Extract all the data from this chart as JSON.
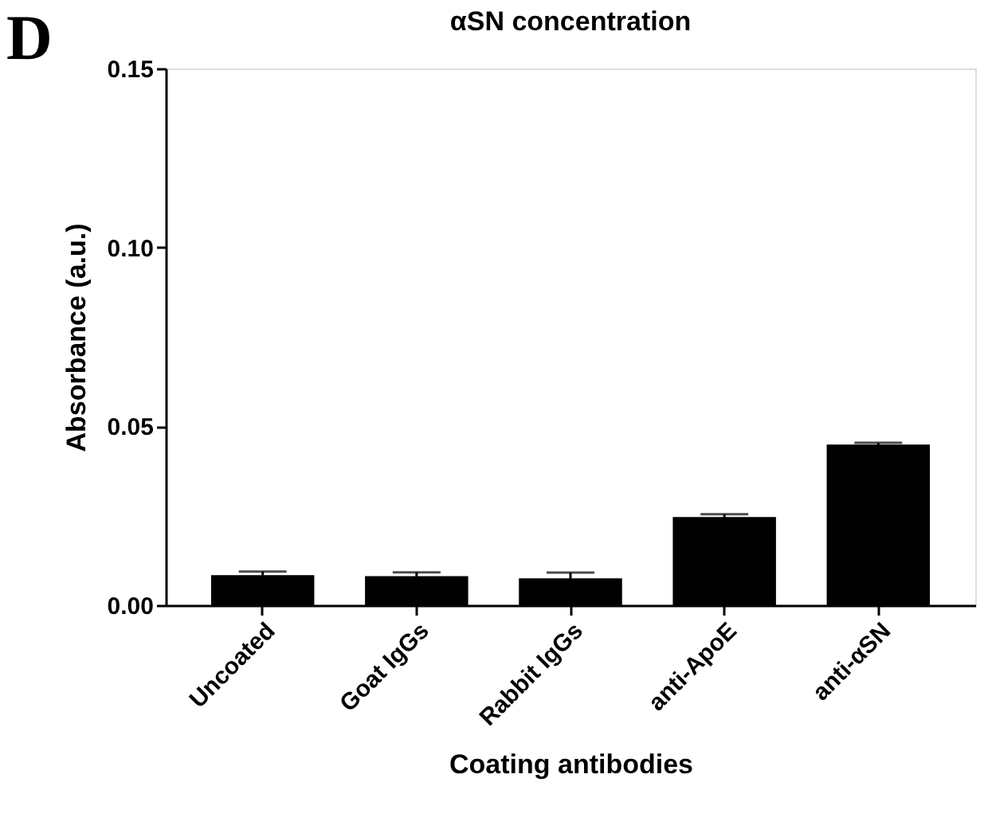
{
  "chart_data": {
    "type": "bar",
    "title": "αSN concentration",
    "xlabel": "Coating antibodies",
    "ylabel": "Absorbance (a.u.)",
    "categories": [
      "Uncoated",
      "Goat IgGs",
      "Rabbit IgGs",
      "anti-ApoE",
      "anti-αSN"
    ],
    "values": [
      0.0082,
      0.0079,
      0.0073,
      0.0244,
      0.0447
    ],
    "errors": [
      0.0012,
      0.0013,
      0.0018,
      0.001,
      0.0007
    ],
    "color": "#000000",
    "ylim": [
      0,
      0.15
    ],
    "yticks": [
      {
        "value": 0,
        "label": "0.00"
      },
      0.05,
      {
        "value": 0.1,
        "label": "0.10"
      },
      0.15
    ],
    "grid": false,
    "annotations": [
      "D"
    ]
  }
}
